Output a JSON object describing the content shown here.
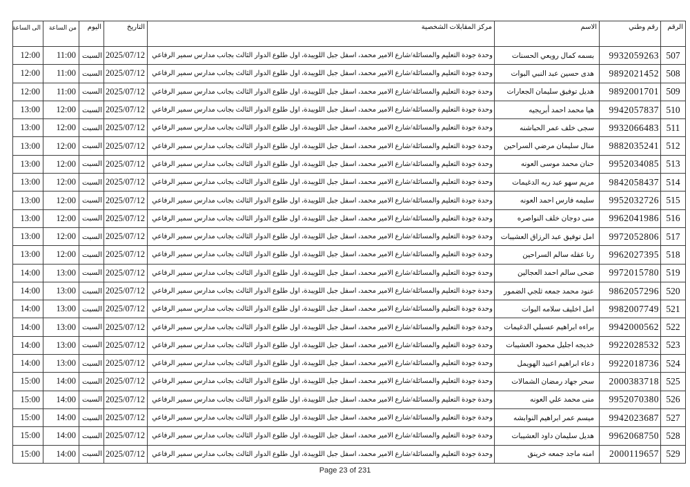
{
  "table": {
    "columns": [
      {
        "key": "num",
        "src": "row",
        "label": "الرقم"
      },
      {
        "key": "national_id",
        "src": "row",
        "label": "رقم وطني"
      },
      {
        "key": "name",
        "src": "row",
        "label": "الاسم"
      },
      {
        "key": "center",
        "src": "shared",
        "label": "مركز المقابلات الشخصية"
      },
      {
        "key": "date",
        "src": "shared",
        "label": "التاريخ"
      },
      {
        "key": "day",
        "src": "shared",
        "label": "اليوم"
      },
      {
        "key": "from",
        "src": "row",
        "label": "من الساعة"
      },
      {
        "key": "to",
        "src": "row",
        "label": "الى الساعة"
      }
    ],
    "shared": {
      "center": "وحدة جودة التعليم والمسائلة/شارع الامير محمد، اسفل جبل اللويبدة، اول طلوع الدوار الثالث بجانب مدارس سمير الرفاعي",
      "date": "2025/07/12",
      "day": "السبت"
    },
    "rows": [
      {
        "num": "507",
        "national_id": "9932059263",
        "name": "بسمه كمال رويعي الحسنات",
        "from": "11:00",
        "to": "12:00"
      },
      {
        "num": "508",
        "national_id": "9892021452",
        "name": "هدى حسين عبد النبي البوات",
        "from": "11:00",
        "to": "12:00"
      },
      {
        "num": "509",
        "national_id": "9892001701",
        "name": "هديل توفيق سليمان الجعارات",
        "from": "11:00",
        "to": "12:00"
      },
      {
        "num": "510",
        "national_id": "9942057837",
        "name": "هيا محمد احمد أبريجيه",
        "from": "12:00",
        "to": "13:00"
      },
      {
        "num": "511",
        "national_id": "9932066483",
        "name": "سجى خلف عمر الحباشنه",
        "from": "12:00",
        "to": "13:00"
      },
      {
        "num": "512",
        "national_id": "9882035241",
        "name": "منال سليمان مرضي السراحين",
        "from": "12:00",
        "to": "13:00"
      },
      {
        "num": "513",
        "national_id": "9952034085",
        "name": "حنان محمد موسى العونه",
        "from": "12:00",
        "to": "13:00"
      },
      {
        "num": "514",
        "national_id": "9842058437",
        "name": "مريم سهو عبد ربه الدغيمات",
        "from": "12:00",
        "to": "13:00"
      },
      {
        "num": "515",
        "national_id": "9952032726",
        "name": "سليمه فارس احمد العونه",
        "from": "12:00",
        "to": "13:00"
      },
      {
        "num": "516",
        "national_id": "9962041986",
        "name": "منى دوجان خلف النواصره",
        "from": "12:00",
        "to": "13:00"
      },
      {
        "num": "517",
        "national_id": "9972052806",
        "name": "امل توفيق عبد الرزاق العشيبات",
        "from": "12:00",
        "to": "13:00"
      },
      {
        "num": "518",
        "national_id": "9962027395",
        "name": "رنا عقله سالم السراحين",
        "from": "12:00",
        "to": "13:00"
      },
      {
        "num": "519",
        "national_id": "9972015780",
        "name": "ضحى سالم احمد العجالين",
        "from": "13:00",
        "to": "14:00"
      },
      {
        "num": "520",
        "national_id": "9862057296",
        "name": "عنود محمد جمعه ثلجي الضمور",
        "from": "13:00",
        "to": "14:00"
      },
      {
        "num": "521",
        "national_id": "9982007749",
        "name": "امل اخليف سلامه البوات",
        "from": "13:00",
        "to": "14:00"
      },
      {
        "num": "522",
        "national_id": "9942000562",
        "name": "براءه ابراهيم عسبلي الدغيمات",
        "from": "13:00",
        "to": "14:00"
      },
      {
        "num": "523",
        "national_id": "9922028532",
        "name": "خديجه اجليل محمود العشيبات",
        "from": "13:00",
        "to": "14:00"
      },
      {
        "num": "524",
        "national_id": "9922018736",
        "name": "دعاء ابراهيم اعبيد الهويمل",
        "from": "13:00",
        "to": "14:00"
      },
      {
        "num": "525",
        "national_id": "2000383718",
        "name": "سحر جهاد رمضان الشمالات",
        "from": "14:00",
        "to": "15:00"
      },
      {
        "num": "526",
        "national_id": "9952070380",
        "name": "منى محمد علي العونه",
        "from": "14:00",
        "to": "15:00"
      },
      {
        "num": "527",
        "national_id": "9942023687",
        "name": "ميسم عمر ابراهيم النوابشه",
        "from": "14:00",
        "to": "15:00"
      },
      {
        "num": "528",
        "national_id": "9962068750",
        "name": "هديل سليمان داود العشيبات",
        "from": "14:00",
        "to": "15:00"
      },
      {
        "num": "529",
        "national_id": "2000119657",
        "name": "امنه ماجد جمعه خرينق",
        "from": "14:00",
        "to": "15:00"
      }
    ]
  },
  "footer": {
    "page_text": "Page 23 of 231"
  }
}
